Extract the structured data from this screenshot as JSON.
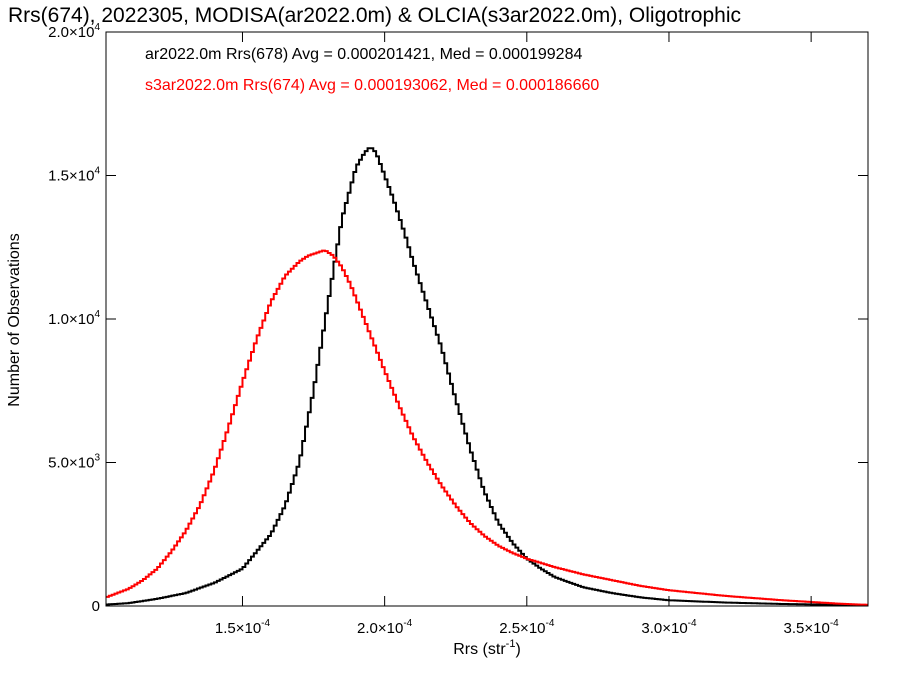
{
  "chart_data": {
    "type": "line",
    "title": "Rrs(674), 2022305, MODISA(ar2022.0m) & OLCIA(s3ar2022.0m), Oligotrophic",
    "xlabel": "Rrs (str",
    "xlabel_sup": "-1",
    "xlabel_close": ")",
    "ylabel": "Number of Observations",
    "xlim": [
      0.000102,
      0.00037
    ],
    "ylim": [
      0,
      20000
    ],
    "grid": false,
    "legend_placement": "top-left",
    "x_ticks": [
      {
        "value": 0.00015,
        "mant": "1.5",
        "exp": "-4"
      },
      {
        "value": 0.0002,
        "mant": "2.0",
        "exp": "-4"
      },
      {
        "value": 0.00025,
        "mant": "2.5",
        "exp": "-4"
      },
      {
        "value": 0.0003,
        "mant": "3.0",
        "exp": "-4"
      },
      {
        "value": 0.00035,
        "mant": "3.5",
        "exp": "-4"
      }
    ],
    "y_ticks": [
      {
        "value": 0,
        "mant": "0",
        "exp": ""
      },
      {
        "value": 5000,
        "mant": "5.0",
        "exp": "3"
      },
      {
        "value": 10000,
        "mant": "1.0",
        "exp": "4"
      },
      {
        "value": 15000,
        "mant": "1.5",
        "exp": "4"
      },
      {
        "value": 20000,
        "mant": "2.0",
        "exp": "4"
      }
    ],
    "times_sign": "×10",
    "series": [
      {
        "name": "ar2022.0m Rrs(678) Avg = 0.000201421, Med = 0.000199284",
        "color": "#000000",
        "x": [
          0.000102,
          0.00011,
          0.00012,
          0.00013,
          0.00014,
          0.00015,
          0.00016,
          0.000165,
          0.00017,
          0.000175,
          0.00018,
          0.000185,
          0.00019,
          0.000193,
          0.000195,
          0.000197,
          0.0002,
          0.000203,
          0.000207,
          0.00021,
          0.000215,
          0.00022,
          0.000225,
          0.00023,
          0.000235,
          0.00024,
          0.000245,
          0.00025,
          0.000255,
          0.00026,
          0.00027,
          0.00028,
          0.00029,
          0.0003,
          0.00032,
          0.00034,
          0.00036,
          0.00037
        ],
        "y": [
          50,
          100,
          250,
          450,
          800,
          1300,
          2500,
          3500,
          5000,
          7500,
          10500,
          13500,
          15300,
          15800,
          16000,
          15800,
          15000,
          14200,
          13000,
          12000,
          10500,
          9000,
          7200,
          5500,
          4000,
          2900,
          2200,
          1650,
          1300,
          1000,
          650,
          450,
          300,
          200,
          120,
          70,
          40,
          30
        ]
      },
      {
        "name": "s3ar2022.0m Rrs(674) Avg = 0.000193062, Med = 0.000186660",
        "color": "#ff0000",
        "x": [
          0.000102,
          0.00011,
          0.000115,
          0.00012,
          0.000125,
          0.00013,
          0.000135,
          0.00014,
          0.000145,
          0.00015,
          0.000155,
          0.00016,
          0.000165,
          0.00017,
          0.000173,
          0.000176,
          0.000179,
          0.000182,
          0.000185,
          0.000188,
          0.000192,
          0.000196,
          0.0002,
          0.000205,
          0.00021,
          0.000215,
          0.00022,
          0.000225,
          0.00023,
          0.000235,
          0.00024,
          0.000245,
          0.00025,
          0.000255,
          0.00026,
          0.00027,
          0.00028,
          0.00029,
          0.0003,
          0.00032,
          0.00034,
          0.00036,
          0.00037
        ],
        "y": [
          300,
          600,
          900,
          1300,
          1900,
          2600,
          3500,
          4700,
          6200,
          7800,
          9300,
          10600,
          11500,
          12000,
          12200,
          12300,
          12400,
          12200,
          11800,
          11200,
          10200,
          9200,
          8200,
          7000,
          5900,
          5000,
          4200,
          3500,
          2900,
          2450,
          2100,
          1850,
          1650,
          1500,
          1350,
          1100,
          900,
          700,
          550,
          350,
          200,
          80,
          40
        ]
      }
    ]
  }
}
